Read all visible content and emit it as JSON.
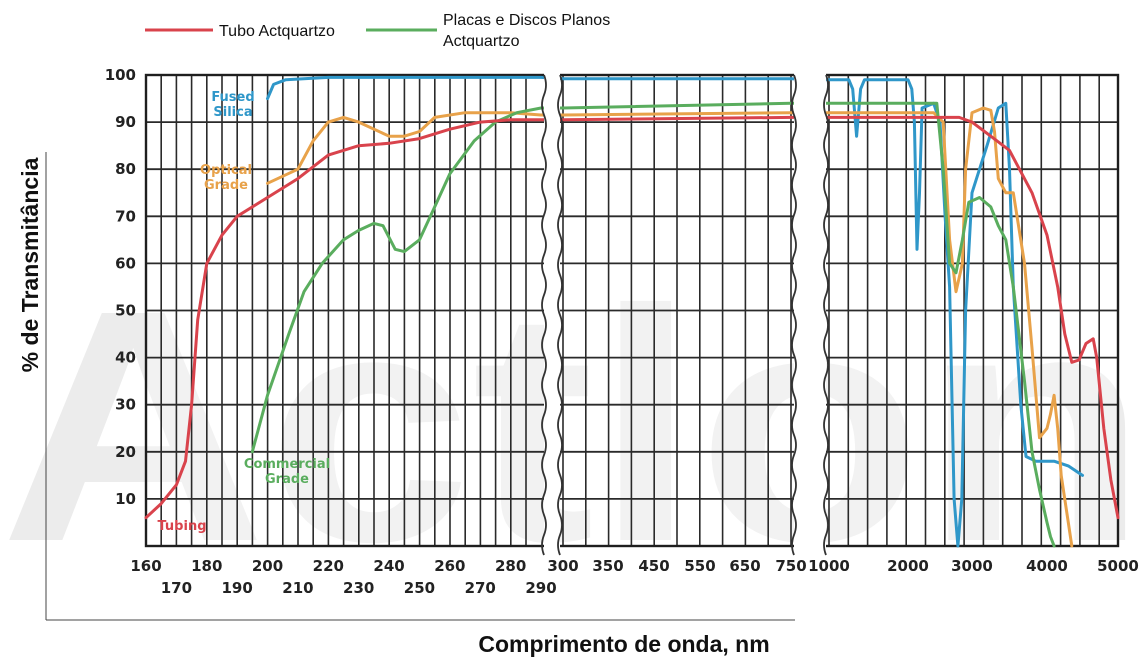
{
  "chart_data": {
    "type": "line",
    "title": "",
    "xlabel": "Comprimento de onda, nm",
    "ylabel": "% de Transmitância",
    "ylim": [
      0,
      100
    ],
    "yticks": [
      "100",
      "90",
      "80",
      "70",
      "60",
      "50",
      "40",
      "30",
      "20",
      "10"
    ],
    "x_scale": "piecewise (break after 290 nm and after 750 nm)",
    "xticks_row1": [
      "160",
      "180",
      "200",
      "220",
      "240",
      "260",
      "280",
      "300",
      "350",
      "450",
      "550",
      "650",
      "750",
      "1000",
      "2000",
      "3000",
      "4000",
      "5000"
    ],
    "xticks_row2": [
      "170",
      "190",
      "210",
      "230",
      "250",
      "270",
      "290"
    ],
    "grid": true,
    "legend": {
      "placement": "top-left",
      "entries": [
        {
          "label": "Tubo Actquartzo",
          "color": "#d9434c"
        },
        {
          "label_line1": "Placas e Discos Planos",
          "label_line2": "Actquartzo",
          "color": "#5aad5e"
        }
      ]
    },
    "annotations": [
      {
        "line1": "Fused",
        "line2": "Silica",
        "color": "#2f97c9"
      },
      {
        "line1": "Optical",
        "line2": "Grade",
        "color": "#e8a24a"
      },
      {
        "line1": "Commercial",
        "line2": "Grade",
        "color": "#5aad5e"
      },
      {
        "line1": "Tubing",
        "line2": "",
        "color": "#d9434c"
      }
    ],
    "series": [
      {
        "name": "Fused Silica",
        "color": "#2f97c9",
        "points": [
          [
            200,
            95
          ],
          [
            202,
            98
          ],
          [
            206,
            99
          ],
          [
            220,
            99.5
          ],
          [
            260,
            99.5
          ],
          [
            290,
            99.5
          ],
          [
            300,
            99.2
          ],
          [
            500,
            99.2
          ],
          [
            750,
            99.2
          ],
          [
            1000,
            99
          ],
          [
            1250,
            99
          ],
          [
            1300,
            97
          ],
          [
            1350,
            87
          ],
          [
            1400,
            97
          ],
          [
            1450,
            99
          ],
          [
            2000,
            99
          ],
          [
            2060,
            97
          ],
          [
            2100,
            90
          ],
          [
            2140,
            63
          ],
          [
            2180,
            75
          ],
          [
            2220,
            93
          ],
          [
            2400,
            94
          ],
          [
            2500,
            90
          ],
          [
            2580,
            70
          ],
          [
            2650,
            55
          ],
          [
            2720,
            10
          ],
          [
            2780,
            0
          ],
          [
            2840,
            10
          ],
          [
            2900,
            50
          ],
          [
            3000,
            75
          ],
          [
            3200,
            85
          ],
          [
            3350,
            93
          ],
          [
            3450,
            94
          ],
          [
            3500,
            80
          ],
          [
            3550,
            55
          ],
          [
            3650,
            30
          ],
          [
            3720,
            19
          ],
          [
            3850,
            18
          ],
          [
            4100,
            18
          ],
          [
            4300,
            17
          ],
          [
            4500,
            15
          ]
        ]
      },
      {
        "name": "Optical Grade",
        "color": "#e8a24a",
        "points": [
          [
            200,
            77
          ],
          [
            210,
            80
          ],
          [
            215,
            86
          ],
          [
            220,
            90
          ],
          [
            225,
            91
          ],
          [
            230,
            90
          ],
          [
            240,
            87
          ],
          [
            245,
            87
          ],
          [
            250,
            88
          ],
          [
            255,
            91
          ],
          [
            265,
            92
          ],
          [
            280,
            92
          ],
          [
            290,
            91.5
          ],
          [
            300,
            91.5
          ],
          [
            750,
            92
          ],
          [
            1000,
            92
          ],
          [
            2000,
            92
          ],
          [
            2400,
            92
          ],
          [
            2550,
            90
          ],
          [
            2650,
            65
          ],
          [
            2750,
            54
          ],
          [
            2850,
            60
          ],
          [
            2900,
            80
          ],
          [
            3000,
            92
          ],
          [
            3150,
            93
          ],
          [
            3250,
            92.5
          ],
          [
            3300,
            88
          ],
          [
            3350,
            78
          ],
          [
            3450,
            75
          ],
          [
            3550,
            75
          ],
          [
            3700,
            60
          ],
          [
            3800,
            42
          ],
          [
            3900,
            23
          ],
          [
            4000,
            25
          ],
          [
            4050,
            28
          ],
          [
            4100,
            32
          ],
          [
            4150,
            25
          ],
          [
            4200,
            15
          ],
          [
            4300,
            5
          ],
          [
            4350,
            0
          ]
        ]
      },
      {
        "name": "Commercial Grade",
        "color": "#5aad5e",
        "points": [
          [
            195,
            20
          ],
          [
            200,
            32
          ],
          [
            207,
            45
          ],
          [
            212,
            54
          ],
          [
            218,
            60
          ],
          [
            225,
            65
          ],
          [
            230,
            67
          ],
          [
            235,
            68.5
          ],
          [
            238,
            68
          ],
          [
            242,
            63
          ],
          [
            245,
            62.5
          ],
          [
            250,
            65
          ],
          [
            255,
            72
          ],
          [
            260,
            79
          ],
          [
            268,
            86
          ],
          [
            275,
            90
          ],
          [
            282,
            92
          ],
          [
            290,
            93
          ],
          [
            300,
            93
          ],
          [
            750,
            94
          ],
          [
            1000,
            94
          ],
          [
            2000,
            94
          ],
          [
            2450,
            94
          ],
          [
            2550,
            80
          ],
          [
            2650,
            60
          ],
          [
            2750,
            58
          ],
          [
            2850,
            65
          ],
          [
            2950,
            73
          ],
          [
            3100,
            74
          ],
          [
            3250,
            72
          ],
          [
            3350,
            68
          ],
          [
            3450,
            65
          ],
          [
            3550,
            55
          ],
          [
            3700,
            35
          ],
          [
            3800,
            20
          ],
          [
            3900,
            12
          ],
          [
            4000,
            5
          ],
          [
            4050,
            2
          ],
          [
            4100,
            0
          ]
        ]
      },
      {
        "name": "Tubing",
        "color": "#d9434c",
        "points": [
          [
            160,
            6
          ],
          [
            165,
            9
          ],
          [
            170,
            13
          ],
          [
            173,
            18
          ],
          [
            175,
            30
          ],
          [
            177,
            48
          ],
          [
            180,
            60
          ],
          [
            185,
            66
          ],
          [
            190,
            70
          ],
          [
            200,
            74
          ],
          [
            210,
            78
          ],
          [
            220,
            83
          ],
          [
            230,
            85
          ],
          [
            240,
            85.5
          ],
          [
            250,
            86.5
          ],
          [
            260,
            88.5
          ],
          [
            270,
            90
          ],
          [
            280,
            90.5
          ],
          [
            290,
            90.5
          ],
          [
            300,
            90.5
          ],
          [
            750,
            91
          ],
          [
            1000,
            91
          ],
          [
            2000,
            91
          ],
          [
            2500,
            91
          ],
          [
            2800,
            91
          ],
          [
            3000,
            90
          ],
          [
            3250,
            87
          ],
          [
            3500,
            84
          ],
          [
            3800,
            75
          ],
          [
            4000,
            66
          ],
          [
            4150,
            55
          ],
          [
            4250,
            45
          ],
          [
            4350,
            39
          ],
          [
            4450,
            39.5
          ],
          [
            4550,
            43
          ],
          [
            4650,
            44
          ],
          [
            4700,
            40
          ],
          [
            4800,
            25
          ],
          [
            4900,
            14
          ],
          [
            5000,
            6
          ]
        ]
      }
    ]
  }
}
